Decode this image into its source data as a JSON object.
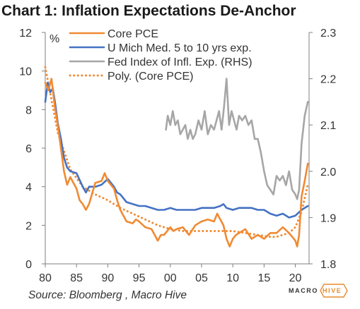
{
  "header": {
    "title": "Chart 1: Inflation Expectations De-Anchor"
  },
  "footer": {
    "source": "Source: Bloomberg , Macro Hive"
  },
  "brand": {
    "part1": "MACRO",
    "part2": "HIVE",
    "accent_color": "#e88a2c"
  },
  "chart_data": {
    "type": "line",
    "title": "Chart 1: Inflation Expectations De-Anchor",
    "y_left_label": "%",
    "x_ticks": [
      "80",
      "85",
      "90",
      "95",
      "00",
      "05",
      "10",
      "15",
      "20"
    ],
    "x_tick_years": [
      1980,
      1985,
      1990,
      1995,
      2000,
      2005,
      2010,
      2015,
      2020
    ],
    "xlim": [
      1980,
      2022.2
    ],
    "ylim_left": [
      0,
      12
    ],
    "y_left_ticks": [
      "0",
      "2",
      "4",
      "6",
      "8",
      "10",
      "12"
    ],
    "ylim_right": [
      1.8,
      2.3
    ],
    "y_right_ticks": [
      "1.8",
      "1.9",
      "2.0",
      "2.1",
      "2.2",
      "2.3"
    ],
    "legend": {
      "placement": "top-center",
      "frame": false
    },
    "grid": false,
    "series": [
      {
        "name": "Core PCE",
        "axis": "left",
        "color": "#f08a33",
        "style": "solid",
        "x": [
          1980,
          1980.5,
          1981,
          1981.5,
          1982,
          1982.5,
          1983,
          1983.5,
          1984,
          1985,
          1985.5,
          1986,
          1986.5,
          1987,
          1988,
          1989,
          1989.5,
          1990,
          1990.5,
          1991,
          1991.5,
          1992,
          1993,
          1994,
          1994.5,
          1995,
          1996,
          1997,
          1998,
          1998.5,
          1999,
          2000,
          2000.5,
          2001,
          2002,
          2003,
          2004,
          2005,
          2006,
          2007,
          2007.5,
          2008,
          2008.5,
          2009,
          2009.5,
          2010,
          2010.5,
          2011,
          2012,
          2013,
          2014,
          2015,
          2016,
          2017,
          2018,
          2019,
          2020,
          2020.3,
          2020.6,
          2021,
          2021.5,
          2022
        ],
        "y": [
          9.4,
          9.0,
          9.6,
          8.2,
          7.2,
          6.0,
          4.8,
          4.1,
          4.5,
          3.9,
          3.3,
          3.1,
          2.8,
          3.1,
          4.2,
          4.3,
          4.7,
          4.3,
          4.1,
          3.9,
          3.3,
          2.8,
          2.2,
          2.1,
          2.3,
          2.2,
          1.9,
          1.8,
          1.2,
          1.5,
          1.5,
          1.9,
          1.7,
          1.8,
          1.9,
          1.5,
          2.0,
          2.2,
          2.3,
          2.2,
          2.6,
          2.3,
          2.0,
          1.3,
          0.9,
          1.3,
          1.5,
          1.6,
          1.8,
          1.3,
          1.5,
          1.3,
          1.6,
          1.6,
          1.9,
          1.6,
          1.2,
          0.9,
          1.5,
          3.5,
          4.3,
          5.2
        ]
      },
      {
        "name": "U Mich Med. 5 to 10 yrs exp.",
        "axis": "left",
        "color": "#4472c4",
        "style": "solid",
        "x": [
          1980,
          1980.4,
          1980.8,
          1981.2,
          1981.6,
          1982,
          1982.5,
          1983,
          1983.5,
          1984,
          1985,
          1986,
          1986.5,
          1987,
          1988,
          1989,
          1990,
          1991,
          1991.5,
          1992,
          1993,
          1994,
          1995,
          1996,
          1997,
          1998,
          1999,
          2000,
          2001,
          2002,
          2003,
          2004,
          2005,
          2006,
          2007,
          2008,
          2008.5,
          2009,
          2010,
          2011,
          2012,
          2013,
          2014,
          2015,
          2016,
          2017,
          2018,
          2019,
          2020,
          2021,
          2022
        ],
        "y": [
          8.4,
          9.4,
          8.9,
          9.1,
          8.3,
          7.3,
          6.5,
          5.5,
          5.0,
          4.8,
          4.7,
          4.0,
          3.7,
          4.0,
          4.0,
          4.1,
          4.4,
          4.0,
          3.7,
          3.6,
          3.2,
          3.1,
          3.0,
          3.0,
          2.9,
          2.8,
          2.8,
          2.9,
          2.8,
          2.8,
          2.8,
          2.8,
          2.9,
          2.9,
          2.9,
          3.0,
          3.1,
          2.9,
          2.8,
          2.9,
          2.9,
          2.9,
          2.8,
          2.8,
          2.6,
          2.5,
          2.6,
          2.4,
          2.5,
          2.8,
          3.0
        ]
      },
      {
        "name": "Fed Index of Infl. Exp. (RHS)",
        "axis": "right",
        "color": "#a6a6a6",
        "style": "solid",
        "x": [
          1999.3,
          1999.6,
          2000,
          2000.4,
          2000.8,
          2001.2,
          2001.6,
          2002,
          2002.4,
          2002.8,
          2003.2,
          2003.6,
          2004,
          2004.5,
          2005,
          2005.5,
          2006,
          2006.5,
          2007,
          2007.4,
          2007.8,
          2008.2,
          2008.6,
          2009,
          2009.4,
          2009.8,
          2010.2,
          2010.6,
          2011,
          2011.5,
          2012,
          2012.5,
          2013,
          2013.5,
          2014,
          2014.5,
          2015,
          2015.5,
          2016,
          2016.5,
          2017,
          2017.5,
          2018,
          2018.5,
          2019,
          2019.5,
          2020,
          2020.3,
          2020.6,
          2021,
          2021.5,
          2022
        ],
        "y": [
          2.09,
          2.12,
          2.1,
          2.13,
          2.1,
          2.11,
          2.08,
          2.09,
          2.1,
          2.07,
          2.09,
          2.07,
          2.08,
          2.11,
          2.09,
          2.13,
          2.08,
          2.1,
          2.09,
          2.11,
          2.13,
          2.09,
          2.14,
          2.2,
          2.1,
          2.13,
          2.11,
          2.09,
          2.12,
          2.11,
          2.12,
          2.1,
          2.11,
          2.07,
          2.07,
          2.04,
          2.0,
          1.97,
          1.96,
          1.95,
          1.99,
          1.98,
          1.99,
          1.97,
          2.0,
          1.96,
          1.95,
          1.94,
          1.96,
          2.06,
          2.12,
          2.15
        ]
      },
      {
        "name": "Poly. (Core PCE)",
        "axis": "left",
        "color": "#f08a33",
        "style": "dotted",
        "x": [
          1980,
          1982,
          1984,
          1986,
          1988,
          1990,
          1992,
          1994,
          1996,
          1998,
          2000,
          2002,
          2004,
          2006,
          2008,
          2010,
          2012,
          2014,
          2016,
          2017,
          2018,
          2019,
          2020,
          2021,
          2022
        ],
        "y": [
          10.2,
          6.8,
          4.9,
          4.0,
          3.6,
          3.3,
          2.9,
          2.6,
          2.3,
          2.0,
          1.8,
          1.7,
          1.7,
          1.7,
          1.7,
          1.7,
          1.6,
          1.5,
          1.4,
          1.4,
          1.5,
          1.6,
          1.9,
          2.7,
          4.1
        ]
      }
    ]
  }
}
